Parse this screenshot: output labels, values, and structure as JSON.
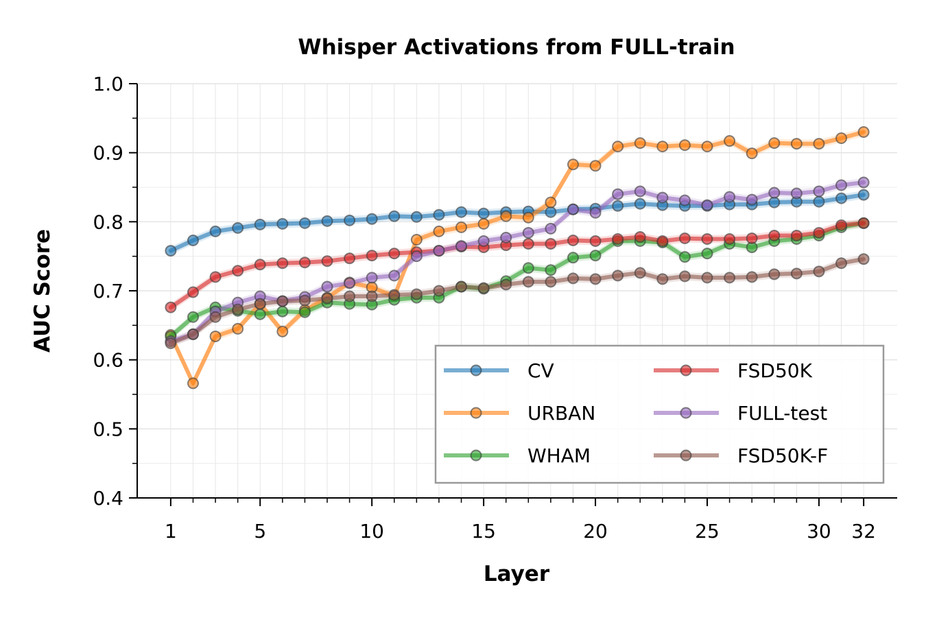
{
  "chart_data": {
    "type": "line",
    "title": "Whisper Activations from FULL-train",
    "xlabel": "Layer",
    "ylabel": "AUC Score",
    "xlim": [
      -0.5,
      33.5
    ],
    "ylim": [
      0.4,
      1.0
    ],
    "x_ticks": [
      1,
      5,
      10,
      15,
      20,
      25,
      30,
      32
    ],
    "x_tick_labels": [
      "1",
      "5",
      "10",
      "15",
      "20",
      "25",
      "30",
      "32"
    ],
    "y_ticks": [
      0.4,
      0.5,
      0.6,
      0.7,
      0.8,
      0.9,
      1.0
    ],
    "y_tick_labels": [
      "0.4",
      "0.5",
      "0.6",
      "0.7",
      "0.8",
      "0.9",
      "1.0"
    ],
    "grid": true,
    "legend_placement": "lower-right",
    "legend_columns": 2,
    "x": [
      1,
      2,
      3,
      4,
      5,
      6,
      7,
      8,
      9,
      10,
      11,
      12,
      13,
      14,
      15,
      16,
      17,
      18,
      19,
      20,
      21,
      22,
      23,
      24,
      25,
      26,
      27,
      28,
      29,
      30,
      31,
      32
    ],
    "series": [
      {
        "name": "CV",
        "color": "#1f77b4",
        "values": [
          0.758,
          0.773,
          0.786,
          0.791,
          0.796,
          0.797,
          0.798,
          0.801,
          0.802,
          0.804,
          0.808,
          0.807,
          0.81,
          0.814,
          0.812,
          0.814,
          0.815,
          0.814,
          0.818,
          0.819,
          0.823,
          0.826,
          0.824,
          0.823,
          0.823,
          0.825,
          0.825,
          0.828,
          0.829,
          0.829,
          0.834,
          0.839
        ]
      },
      {
        "name": "URBAN",
        "color": "#ff7f0e",
        "values": [
          0.636,
          0.566,
          0.634,
          0.645,
          0.681,
          0.641,
          0.672,
          0.69,
          0.712,
          0.705,
          0.692,
          0.774,
          0.786,
          0.792,
          0.797,
          0.808,
          0.806,
          0.828,
          0.883,
          0.881,
          0.909,
          0.914,
          0.909,
          0.911,
          0.909,
          0.917,
          0.899,
          0.914,
          0.913,
          0.913,
          0.921,
          0.93
        ]
      },
      {
        "name": "WHAM",
        "color": "#2ca02c",
        "values": [
          0.634,
          0.662,
          0.676,
          0.671,
          0.666,
          0.67,
          0.669,
          0.683,
          0.681,
          0.68,
          0.687,
          0.69,
          0.69,
          0.706,
          0.703,
          0.714,
          0.733,
          0.73,
          0.748,
          0.751,
          0.772,
          0.772,
          0.77,
          0.749,
          0.754,
          0.768,
          0.763,
          0.772,
          0.775,
          0.78,
          0.792,
          0.798
        ]
      },
      {
        "name": "FSD50K",
        "color": "#d62728",
        "values": [
          0.676,
          0.698,
          0.72,
          0.729,
          0.738,
          0.74,
          0.741,
          0.743,
          0.747,
          0.751,
          0.754,
          0.756,
          0.758,
          0.764,
          0.763,
          0.766,
          0.768,
          0.768,
          0.773,
          0.772,
          0.775,
          0.778,
          0.772,
          0.776,
          0.775,
          0.775,
          0.776,
          0.78,
          0.78,
          0.784,
          0.795,
          0.798
        ]
      },
      {
        "name": "FULL-test",
        "color": "#9467bd",
        "values": [
          0.627,
          0.637,
          0.67,
          0.683,
          0.692,
          0.685,
          0.691,
          0.706,
          0.711,
          0.719,
          0.722,
          0.75,
          0.758,
          0.765,
          0.772,
          0.777,
          0.784,
          0.79,
          0.818,
          0.813,
          0.84,
          0.844,
          0.835,
          0.831,
          0.824,
          0.836,
          0.832,
          0.842,
          0.841,
          0.844,
          0.853,
          0.857
        ]
      },
      {
        "name": "FSD50K-F",
        "color": "#8c564b",
        "values": [
          0.624,
          0.637,
          0.662,
          0.673,
          0.681,
          0.685,
          0.686,
          0.689,
          0.692,
          0.692,
          0.694,
          0.695,
          0.7,
          0.706,
          0.704,
          0.709,
          0.713,
          0.713,
          0.718,
          0.717,
          0.722,
          0.726,
          0.717,
          0.721,
          0.719,
          0.719,
          0.72,
          0.724,
          0.725,
          0.728,
          0.74,
          0.746
        ]
      }
    ]
  }
}
